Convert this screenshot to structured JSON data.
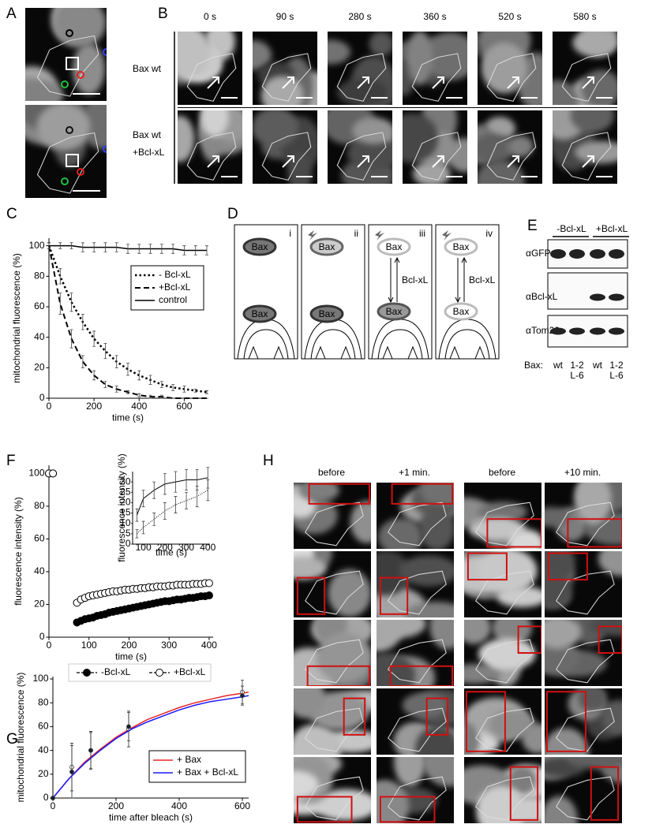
{
  "panel_labels": [
    "A",
    "B",
    "C",
    "D",
    "E",
    "F",
    "G",
    "H"
  ],
  "panel_b": {
    "times": [
      "0 s",
      "90 s",
      "280 s",
      "360 s",
      "520 s",
      "580 s"
    ],
    "rows": [
      [
        "Bax wt"
      ],
      [
        "Bax wt",
        "+Bcl-xL"
      ]
    ]
  },
  "panel_d": {
    "panels": [
      {
        "numeral": "i",
        "labels": [
          "Bax",
          "Bax"
        ]
      },
      {
        "numeral": "ii",
        "labels": [
          "Bax",
          "Bax"
        ]
      },
      {
        "numeral": "iii",
        "labels": [
          "Bax",
          "Bcl-xL",
          "Bax"
        ]
      },
      {
        "numeral": "iv",
        "labels": [
          "Bax",
          "Bcl-xL",
          "Bax"
        ]
      }
    ]
  },
  "panel_e": {
    "groups": [
      "-Bcl-xL",
      "+Bcl-xL"
    ],
    "antibodies": [
      "αGFP",
      "αBcl-xL",
      "αTom20"
    ],
    "lane_title": "Bax:",
    "lanes": [
      [
        "wt"
      ],
      [
        "1-2",
        "L-6"
      ],
      [
        "wt"
      ],
      [
        "1-2",
        "L-6"
      ]
    ]
  },
  "panel_h": {
    "columns": [
      "before",
      "+1 min.",
      "before",
      "+10 min."
    ]
  },
  "chart_data": [
    {
      "type": "line",
      "xlabel": "time (s)",
      "ylabel": "mitochondrial fluorescence (%)",
      "x": [
        0,
        50,
        100,
        150,
        200,
        250,
        300,
        350,
        400,
        450,
        500,
        550,
        600,
        650,
        700
      ],
      "xlim": [
        0,
        700
      ],
      "xticks": [
        0,
        200,
        400,
        600
      ],
      "ylim": [
        0,
        105
      ],
      "yticks": [
        0,
        20,
        40,
        60,
        80,
        100
      ],
      "legend": "upper right",
      "series": [
        {
          "name": "- Bcl-xL",
          "color": "#000000",
          "style": "dotted",
          "values": [
            100,
            80,
            63,
            50,
            39,
            31,
            24,
            19,
            15,
            12,
            9,
            7,
            6,
            5,
            4
          ],
          "errors": [
            2,
            5,
            6,
            5,
            5,
            5,
            4,
            4,
            3,
            3,
            2,
            2,
            2,
            1,
            1
          ]
        },
        {
          "name": "+Bcl-xL",
          "color": "#000000",
          "style": "dashed",
          "values": [
            100,
            62,
            39,
            24,
            15,
            9,
            6,
            4,
            2,
            1,
            1,
            0,
            0,
            0,
            0
          ],
          "errors": [
            2,
            7,
            6,
            4,
            3,
            2,
            2,
            1,
            1,
            1,
            1,
            0,
            0,
            0,
            0
          ]
        },
        {
          "name": "control",
          "color": "#000000",
          "style": "solid",
          "values": [
            100,
            100,
            100,
            99,
            99,
            99,
            99,
            98,
            98,
            98,
            98,
            98,
            97,
            97,
            97
          ],
          "errors": [
            2,
            2,
            2,
            3,
            3,
            3,
            3,
            3,
            3,
            3,
            3,
            3,
            3,
            3,
            3
          ]
        }
      ]
    },
    {
      "type": "scatter",
      "xlabel": "time (s)",
      "ylabel": "fluorescence intensity (%)",
      "x": [
        0,
        10,
        70,
        80,
        90,
        100,
        110,
        120,
        130,
        140,
        150,
        160,
        170,
        180,
        190,
        200,
        210,
        220,
        230,
        240,
        250,
        260,
        270,
        280,
        290,
        300,
        310,
        320,
        330,
        340,
        350,
        360,
        370,
        380,
        390,
        400
      ],
      "xlim": [
        0,
        410
      ],
      "xticks": [
        0,
        100,
        200,
        300,
        400
      ],
      "ylim": [
        0,
        105
      ],
      "yticks": [
        0,
        20,
        40,
        60,
        80,
        100
      ],
      "legend": "below",
      "series": [
        {
          "name": "-Bcl-xL",
          "color": "#000000",
          "marker": "filled",
          "values": [
            100,
            100,
            9,
            10,
            11,
            11.5,
            12,
            13,
            13.5,
            14,
            15,
            15.5,
            16,
            16.5,
            17,
            17.5,
            18,
            18.5,
            19,
            19.5,
            20,
            20.5,
            21,
            21.5,
            22,
            22,
            22.5,
            23,
            23,
            23.5,
            24,
            24,
            24.5,
            25,
            25,
            25.5
          ]
        },
        {
          "name": "+Bcl-xL",
          "color": "#000000",
          "marker": "open",
          "values": [
            100,
            100,
            21,
            23,
            24,
            25,
            25.5,
            26,
            26.5,
            27,
            27.5,
            28,
            28,
            28.5,
            29,
            29,
            29.5,
            29.5,
            30,
            30,
            30.5,
            30.5,
            31,
            31,
            31,
            31.5,
            31.5,
            32,
            32,
            32,
            32,
            32.5,
            32.5,
            32.5,
            33,
            33
          ]
        }
      ]
    },
    {
      "type": "line",
      "xlabel": "time (s)",
      "ylabel": "fluorescence intensity (%)",
      "x": [
        70,
        100,
        150,
        200,
        250,
        300,
        350,
        400
      ],
      "xlim": [
        50,
        410
      ],
      "xticks": [
        100,
        200,
        300,
        400
      ],
      "ylim": [
        0,
        35
      ],
      "yticks": [
        0,
        5,
        10,
        15,
        20,
        25,
        30
      ],
      "series": [
        {
          "color": "#000000",
          "style": "dotted",
          "values": [
            5,
            8,
            12,
            16,
            19,
            21,
            23,
            26
          ],
          "errors": [
            2,
            3,
            3,
            4,
            4,
            4,
            5,
            5
          ]
        },
        {
          "color": "#000000",
          "style": "solid",
          "values": [
            14,
            22,
            26,
            29,
            30,
            31,
            31,
            32
          ],
          "errors": [
            3,
            4,
            4,
            5,
            5,
            5,
            5,
            5
          ]
        }
      ]
    },
    {
      "type": "line",
      "xlabel": "time after bleach (s)",
      "ylabel": "mitochondrial fluorescence (%)",
      "x": [
        0,
        50,
        100,
        150,
        200,
        250,
        300,
        350,
        400,
        450,
        500,
        550,
        600,
        620
      ],
      "xlim": [
        0,
        620
      ],
      "xticks": [
        0,
        200,
        400,
        600
      ],
      "ylim": [
        0,
        102
      ],
      "yticks": [
        0,
        20,
        40,
        60,
        80,
        100
      ],
      "legend": "lower right",
      "points_x": [
        0,
        60,
        120,
        240,
        600
      ],
      "series": [
        {
          "name": "+ Bax",
          "color": "#e8262b",
          "style": "solid",
          "values": [
            0,
            16,
            30,
            41,
            51,
            59,
            66,
            71,
            76,
            80,
            83,
            86,
            88,
            89
          ],
          "points": [
            0,
            26,
            40,
            58,
            89
          ],
          "point_errors": [
            0,
            20,
            16,
            15,
            10
          ]
        },
        {
          "name": "+ Bax + Bcl-xL",
          "color": "#1a1aff",
          "style": "solid",
          "values": [
            0,
            16,
            29,
            40,
            50,
            58,
            64,
            69,
            74,
            78,
            81,
            83,
            85,
            86
          ],
          "points": [
            0,
            22,
            40,
            60,
            86
          ],
          "point_errors": [
            0,
            22,
            15,
            12,
            8
          ]
        }
      ]
    }
  ]
}
